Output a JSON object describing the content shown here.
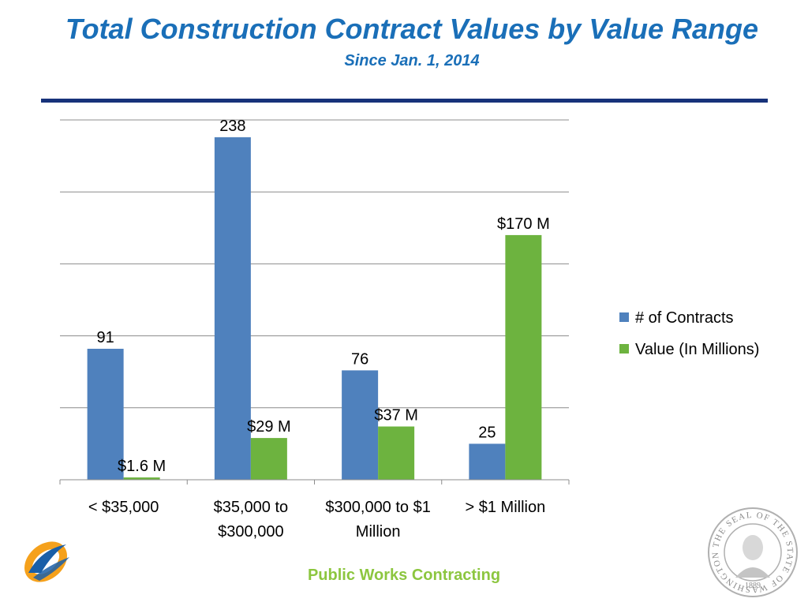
{
  "header": {
    "title": "Total Construction Contract Values by Value Range",
    "subtitle": "Since Jan. 1, 2014"
  },
  "footer": {
    "text": "Public Works Contracting"
  },
  "colors": {
    "title": "#1a6fb8",
    "rule": "#17327a",
    "series1": "#4f81bd",
    "series2": "#6db33f",
    "footer": "#8cc63f"
  },
  "logos": {
    "left": "swoosh-logo",
    "right": "seal-of-washington",
    "seal_text": "THE SEAL OF THE STATE OF WASHINGTON",
    "seal_year": "1889"
  },
  "chart_data": {
    "type": "bar",
    "categories": [
      [
        "< $35,000"
      ],
      [
        "$35,000 to",
        "$300,000"
      ],
      [
        "$300,000 to $1",
        "Million"
      ],
      [
        "> $1 Million"
      ]
    ],
    "series": [
      {
        "name": "# of Contracts",
        "values": [
          91,
          238,
          76,
          25
        ],
        "labels": [
          "91",
          "238",
          "76",
          "25"
        ]
      },
      {
        "name": "Value (In Millions)",
        "values": [
          1.6,
          29,
          37,
          170
        ],
        "labels": [
          "$1.6 M",
          "$29 M",
          "$37 M",
          "$170 M"
        ]
      }
    ],
    "ylim": [
      0,
      250
    ],
    "grid": true,
    "legend": "right"
  }
}
